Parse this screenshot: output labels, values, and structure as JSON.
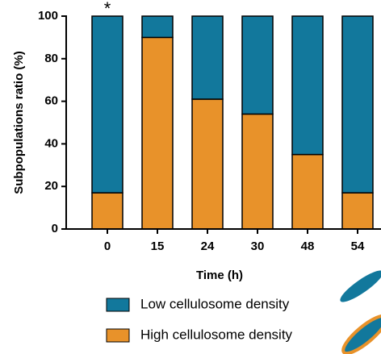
{
  "chart_data": {
    "type": "stacked-bar",
    "x_label": "Time (h)",
    "y_label": "Subpopulations ratio (%)",
    "annotation": "*",
    "categories": [
      "0",
      "15",
      "24",
      "30",
      "48",
      "54"
    ],
    "series": [
      {
        "name": "Low cellulosome density",
        "color": "#12789c",
        "values": [
          83,
          10,
          39,
          46,
          65,
          83
        ]
      },
      {
        "name": "High cellulosome density",
        "color": "#e8922a",
        "values": [
          17,
          90,
          61,
          54,
          35,
          17
        ]
      }
    ],
    "ylim": [
      0,
      100
    ],
    "yticks": [
      0,
      20,
      40,
      60,
      80,
      100
    ]
  }
}
